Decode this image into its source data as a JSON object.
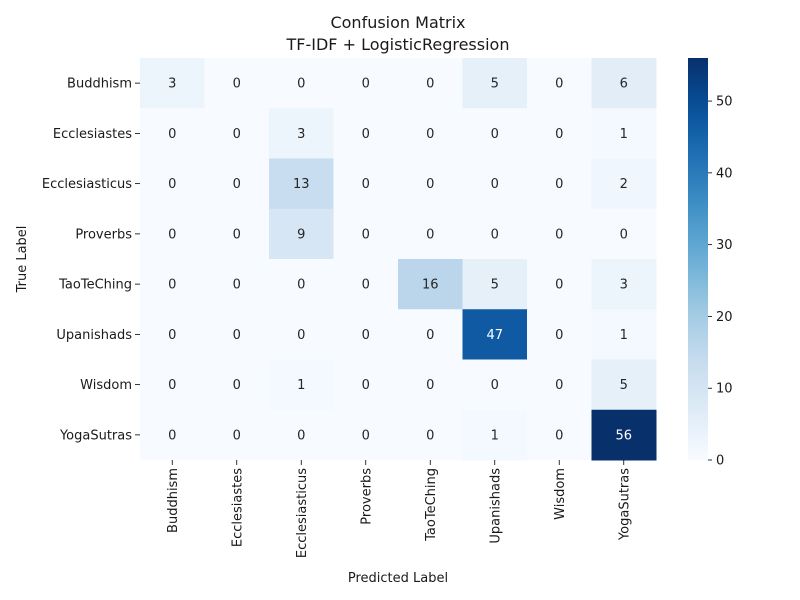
{
  "chart_data": {
    "type": "heatmap",
    "title": "Confusion Matrix",
    "subtitle": "TF-IDF + LogisticRegression",
    "xlabel": "Predicted Label",
    "ylabel": "True Label",
    "row_labels": [
      "Buddhism",
      "Ecclesiastes",
      "Ecclesiasticus",
      "Proverbs",
      "TaoTeChing",
      "Upanishads",
      "Wisdom",
      "YogaSutras"
    ],
    "col_labels": [
      "Buddhism",
      "Ecclesiastes",
      "Ecclesiasticus",
      "Proverbs",
      "TaoTeChing",
      "Upanishads",
      "Wisdom",
      "YogaSutras"
    ],
    "values": [
      [
        3,
        0,
        0,
        0,
        0,
        5,
        0,
        6
      ],
      [
        0,
        0,
        3,
        0,
        0,
        0,
        0,
        1
      ],
      [
        0,
        0,
        13,
        0,
        0,
        0,
        0,
        2
      ],
      [
        0,
        0,
        9,
        0,
        0,
        0,
        0,
        0
      ],
      [
        0,
        0,
        0,
        0,
        16,
        5,
        0,
        3
      ],
      [
        0,
        0,
        0,
        0,
        0,
        47,
        0,
        1
      ],
      [
        0,
        0,
        1,
        0,
        0,
        0,
        0,
        5
      ],
      [
        0,
        0,
        0,
        0,
        0,
        1,
        0,
        56
      ]
    ],
    "colormap": "Blues",
    "vmin": 0,
    "vmax": 56,
    "colorbar_ticks": [
      0,
      10,
      20,
      30,
      40,
      50
    ],
    "colorbar_tick_labels": [
      "0",
      "10",
      "20",
      "30",
      "40",
      "50"
    ],
    "annotations": true,
    "grid": false
  }
}
